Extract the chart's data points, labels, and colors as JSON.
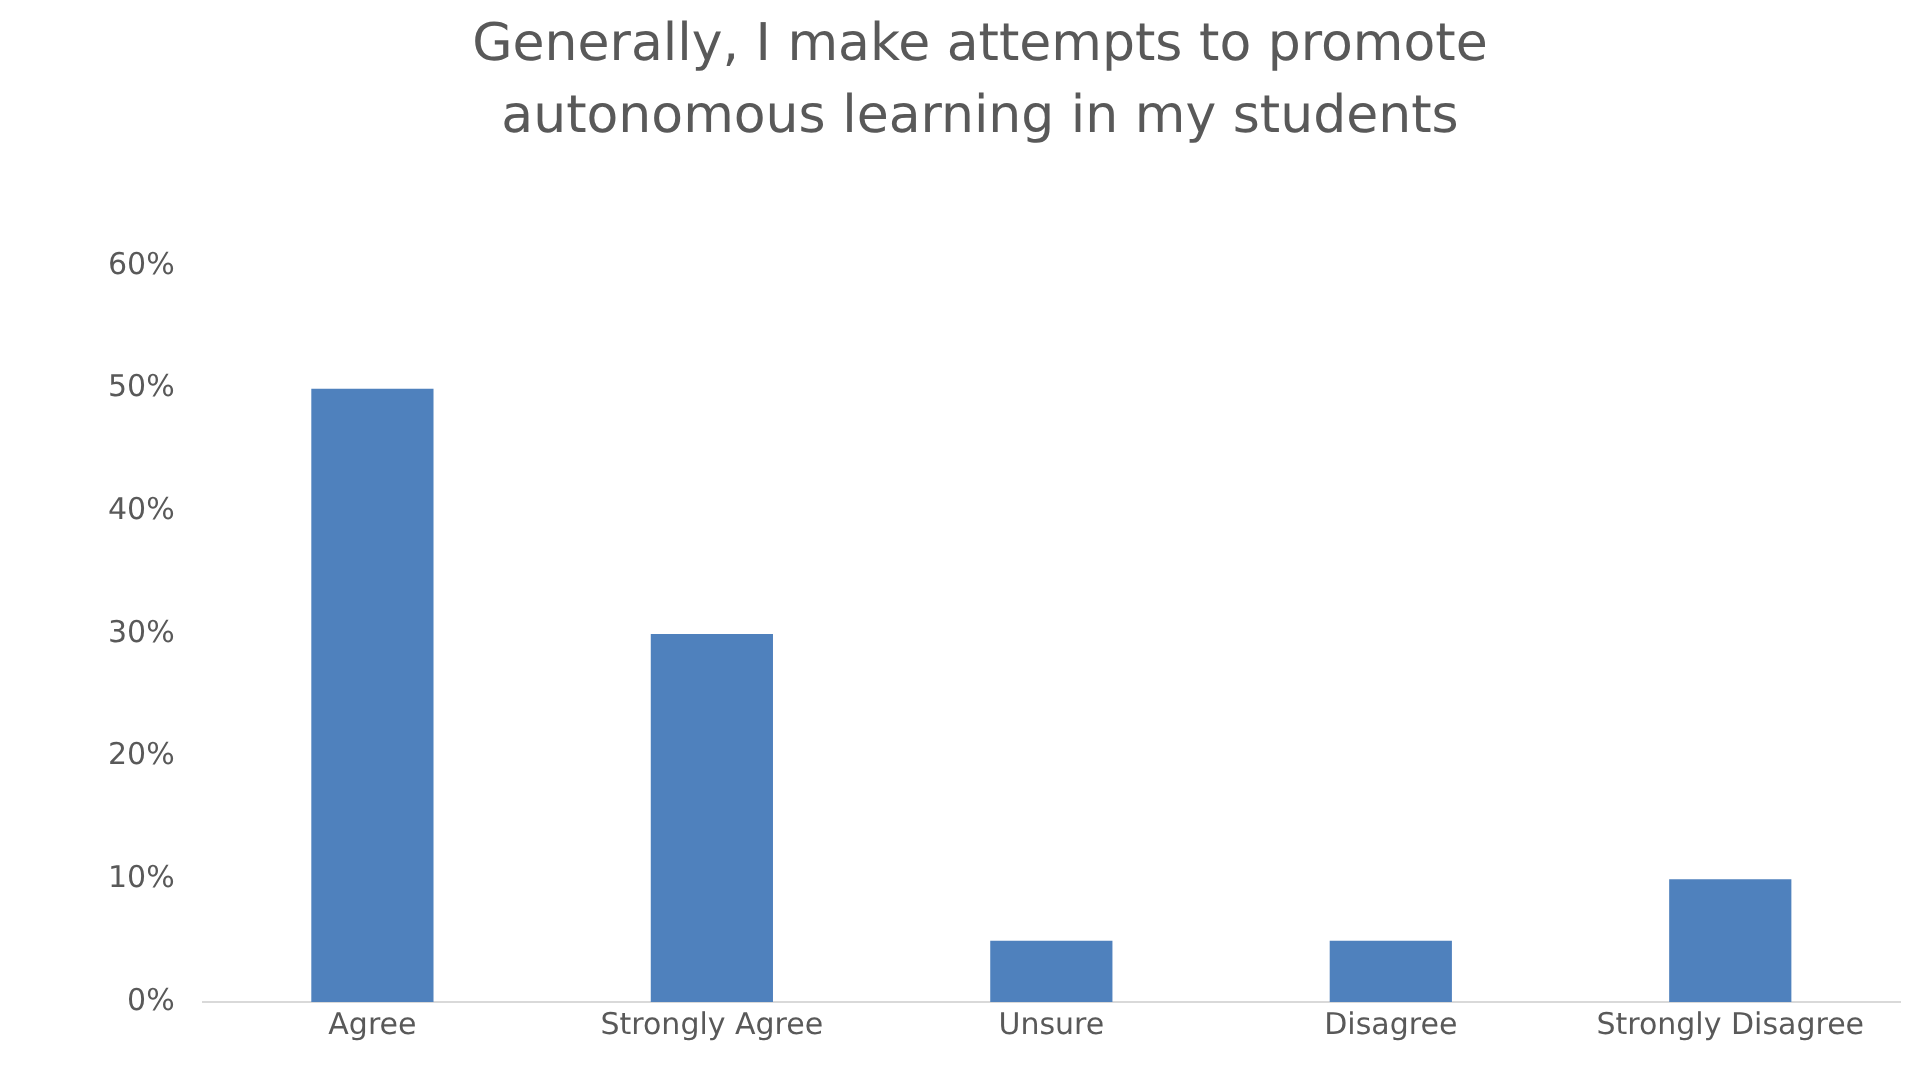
{
  "chart_data": {
    "type": "bar",
    "title": "Generally, I make attempts to promote autonomous learning in my students",
    "categories": [
      "Agree",
      "Strongly Agree",
      "Unsure",
      "Disagree",
      "Strongly Disagree"
    ],
    "values": [
      50,
      30,
      5,
      5,
      10
    ],
    "color": "#4f81bd",
    "ylim": [
      0,
      60
    ],
    "yticks": [
      {
        "value": 0,
        "label": "0%"
      },
      {
        "value": 10,
        "label": "10%"
      },
      {
        "value": 20,
        "label": "20%"
      },
      {
        "value": 30,
        "label": "30%"
      },
      {
        "value": 40,
        "label": "40%"
      },
      {
        "value": 50,
        "label": "50%"
      },
      {
        "value": 60,
        "label": "60%"
      }
    ],
    "grid": false,
    "legend": false
  }
}
